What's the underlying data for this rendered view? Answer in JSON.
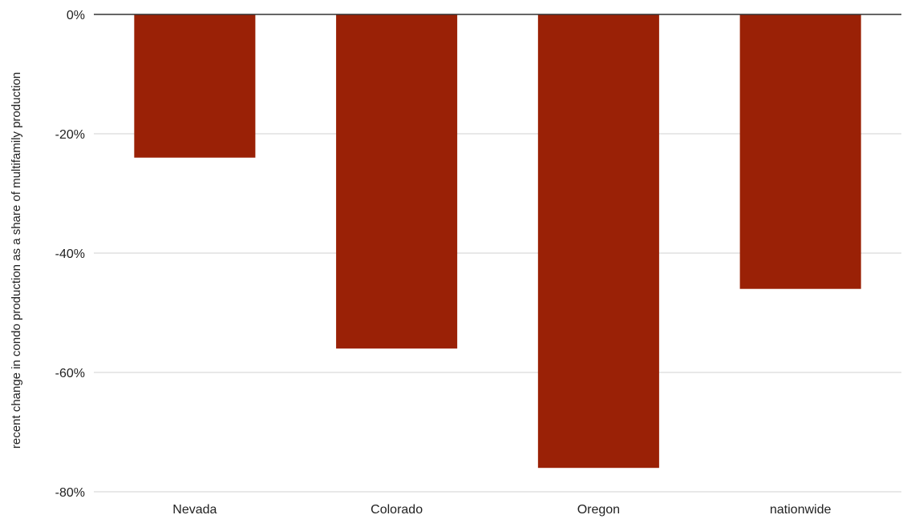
{
  "chart_data": {
    "type": "bar",
    "categories": [
      "Nevada",
      "Colorado",
      "Oregon",
      "nationwide"
    ],
    "values": [
      -0.24,
      -0.56,
      -0.76,
      -0.46
    ],
    "ylabel": "recent change in condo production as a share of multifamily production",
    "ylim": [
      -0.8,
      0
    ],
    "yticks": [
      0,
      -0.2,
      -0.4,
      -0.6,
      -0.8
    ],
    "ytick_labels": [
      "0%",
      "-20%",
      "-40%",
      "-60%",
      "-80%"
    ],
    "grid": true,
    "bar_color": "#9a2106",
    "grid_color": "#d9d9d9",
    "zero_line_color": "#333333"
  }
}
